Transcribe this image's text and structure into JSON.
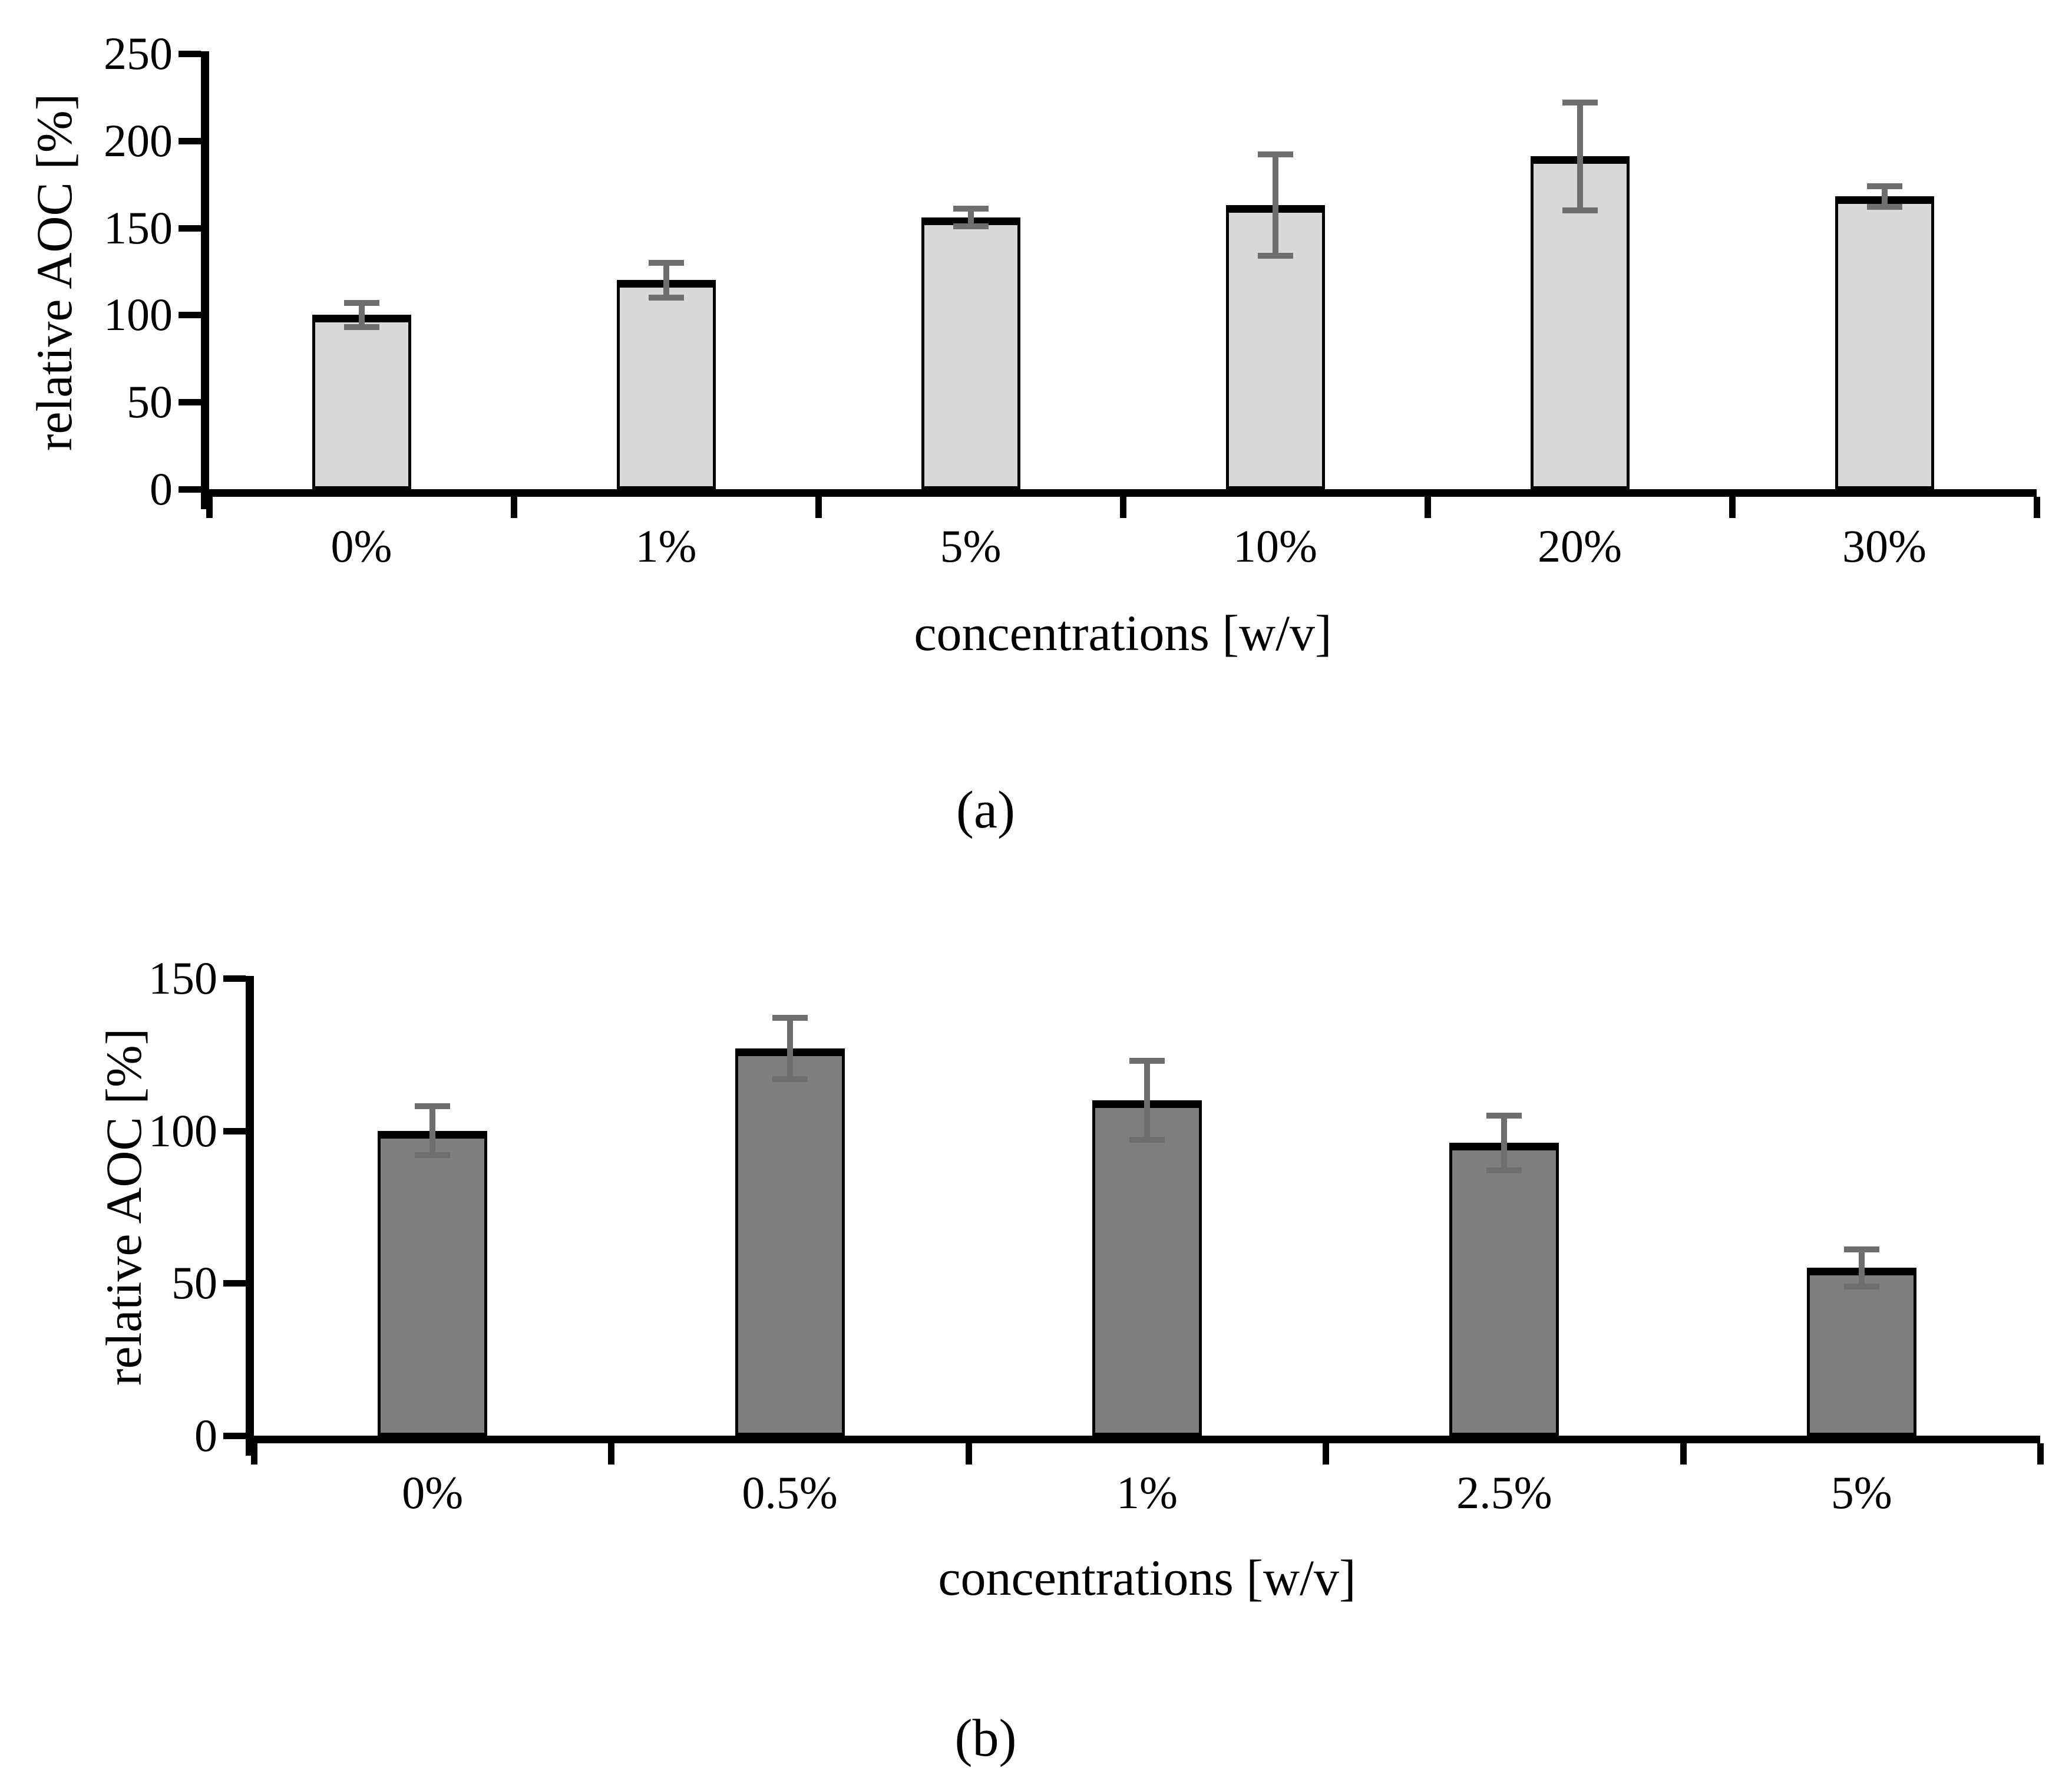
{
  "figure": {
    "background": "#ffffff",
    "text_color": "#000000",
    "axis_color": "#000000",
    "panels": [
      {
        "id": "a",
        "caption": "(a)"
      },
      {
        "id": "b",
        "caption": "(b)"
      }
    ]
  },
  "chart_data": [
    {
      "type": "bar",
      "title": "",
      "xlabel": "concentrations [w/v]",
      "ylabel": "relative AOC [%]",
      "caption": "(a)",
      "categories": [
        "0%",
        "1%",
        "5%",
        "10%",
        "20%",
        "30%"
      ],
      "values": [
        100,
        120,
        156,
        163,
        191,
        168
      ],
      "errors": [
        7,
        10,
        5,
        29,
        31,
        6
      ],
      "ylim": [
        0,
        250
      ],
      "yticks": [
        0,
        50,
        100,
        150,
        200,
        250
      ],
      "grid": false,
      "legend_position": "none",
      "bar_color": "#d9d9d9",
      "bar_border_color": "#000000",
      "error_bar_color": "#6e6e6e"
    },
    {
      "type": "bar",
      "title": "",
      "xlabel": "concentrations [w/v]",
      "ylabel": "relative AOC [%]",
      "caption": "(b)",
      "categories": [
        "0%",
        "0.5%",
        "1%",
        "2.5%",
        "5%"
      ],
      "values": [
        100,
        127,
        110,
        96,
        55
      ],
      "errors": [
        8,
        10,
        13,
        9,
        6
      ],
      "ylim": [
        0,
        150
      ],
      "yticks": [
        0,
        50,
        100,
        150
      ],
      "grid": false,
      "legend_position": "none",
      "bar_color": "#7f7f7f",
      "bar_border_color": "#000000",
      "error_bar_color": "#6e6e6e"
    }
  ]
}
